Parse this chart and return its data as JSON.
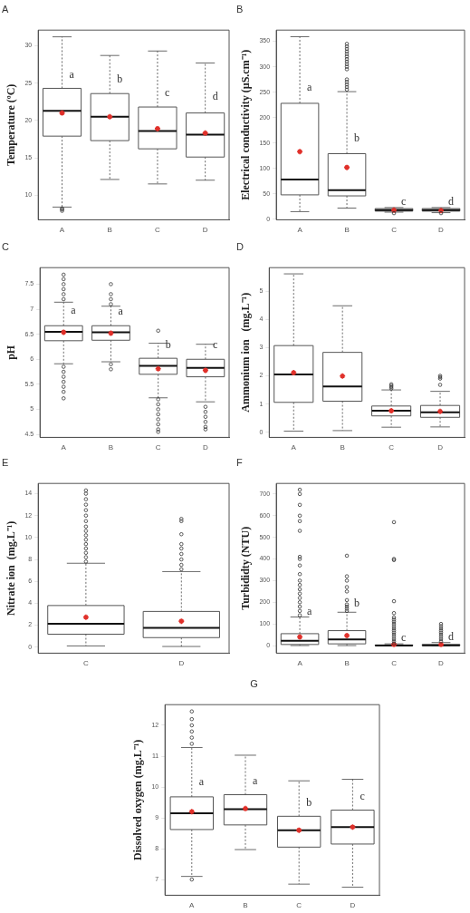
{
  "chart_data": [
    {
      "type": "box",
      "title": "A",
      "ylabel": "Temperature (ºC)",
      "categories": [
        "A",
        "B",
        "C",
        "D"
      ],
      "ylim": [
        6.7,
        32.1
      ],
      "yticks": [
        10,
        15,
        20,
        25,
        30
      ],
      "grid": false,
      "legend": false,
      "boxes": [
        {
          "low": 8.4,
          "q1": 17.9,
          "median": 21.3,
          "q3": 24.3,
          "high": 31.2,
          "mean": 21.0,
          "outliers": [
            7.9,
            8.1,
            8.2
          ]
        },
        {
          "low": 12.1,
          "q1": 17.3,
          "median": 20.5,
          "q3": 23.6,
          "high": 28.7,
          "mean": 20.5
        },
        {
          "low": 11.5,
          "q1": 16.2,
          "median": 18.6,
          "q3": 21.8,
          "high": 29.3,
          "mean": 18.9
        },
        {
          "low": 12.0,
          "q1": 15.1,
          "median": 18.1,
          "q3": 21.0,
          "high": 27.7,
          "mean": 18.3
        }
      ],
      "annotations": [
        {
          "text": "a",
          "x": "A",
          "y": 25.3
        },
        {
          "text": "b",
          "x": "B",
          "y": 24.7
        },
        {
          "text": "c",
          "x": "C",
          "y": 22.9
        },
        {
          "text": "d",
          "x": "D",
          "y": 22.4
        }
      ]
    },
    {
      "type": "box",
      "title": "B",
      "ylabel": "Electrical conductivity (µS.cm⁻¹)",
      "categories": [
        "A",
        "B",
        "C",
        "D"
      ],
      "ylim": [
        -1,
        372
      ],
      "yticks": [
        0,
        50,
        100,
        150,
        200,
        250,
        300,
        350
      ],
      "grid": false,
      "legend": false,
      "boxes": [
        {
          "low": 15,
          "q1": 48,
          "median": 78,
          "q3": 228,
          "high": 359,
          "mean": 133
        },
        {
          "low": 22,
          "q1": 46,
          "median": 57,
          "q3": 129,
          "high": 251,
          "mean": 102,
          "outliers": [
            255,
            260,
            265,
            270,
            275,
            295,
            300,
            305,
            310,
            315,
            320,
            325,
            330,
            335,
            340,
            345
          ]
        },
        {
          "low": 14,
          "q1": 16,
          "median": 18,
          "q3": 21,
          "high": 23,
          "mean": 18,
          "outliers": [
            12
          ]
        },
        {
          "low": 13,
          "q1": 16,
          "median": 18,
          "q3": 21,
          "high": 23,
          "mean": 17,
          "outliers": [
            12
          ]
        }
      ],
      "annotations": [
        {
          "text": "a",
          "x": "A",
          "y": 247
        },
        {
          "text": "b",
          "x": "B",
          "y": 148
        },
        {
          "text": "c",
          "x": "C",
          "y": 23
        },
        {
          "text": "d",
          "x": "D",
          "y": 23
        }
      ]
    },
    {
      "type": "box",
      "title": "C",
      "ylabel": "pH",
      "categories": [
        "A",
        "B",
        "C",
        "D"
      ],
      "ylim": [
        4.44,
        7.83
      ],
      "yticks": [
        4.5,
        5.0,
        5.5,
        6.0,
        6.5,
        7.0,
        7.5
      ],
      "grid": false,
      "legend": false,
      "boxes": [
        {
          "low": 5.91,
          "q1": 6.37,
          "median": 6.55,
          "q3": 6.67,
          "high": 7.14,
          "mean": 6.54,
          "outliers": [
            7.2,
            7.3,
            7.4,
            7.5,
            7.6,
            7.69,
            5.85,
            5.75,
            5.65,
            5.55,
            5.45,
            5.35,
            5.22
          ]
        },
        {
          "low": 5.95,
          "q1": 6.38,
          "median": 6.54,
          "q3": 6.67,
          "high": 7.06,
          "mean": 6.52,
          "outliers": [
            7.1,
            7.2,
            7.3,
            7.5,
            5.9,
            5.8
          ]
        },
        {
          "low": 5.23,
          "q1": 5.7,
          "median": 5.87,
          "q3": 6.02,
          "high": 6.32,
          "mean": 5.81,
          "outliers": [
            6.57,
            5.2,
            5.1,
            5.0,
            4.9,
            4.8,
            4.7,
            4.6,
            4.55
          ]
        },
        {
          "low": 5.15,
          "q1": 5.65,
          "median": 5.83,
          "q3": 6.0,
          "high": 6.3,
          "mean": 5.78,
          "outliers": [
            5.05,
            4.95,
            4.85,
            4.75,
            4.65,
            4.6
          ]
        }
      ],
      "annotations": [
        {
          "text": "a",
          "x": "A",
          "y": 6.85
        },
        {
          "text": "a",
          "x": "B",
          "y": 6.84
        },
        {
          "text": "b",
          "x": "C",
          "y": 6.17
        },
        {
          "text": "c",
          "x": "D",
          "y": 6.17
        }
      ]
    },
    {
      "type": "box",
      "title": "D",
      "ylabel": "Ammonium ion   (mg.L⁻¹)",
      "categories": [
        "A",
        "B",
        "C",
        "D"
      ],
      "ylim": [
        -0.18,
        5.83
      ],
      "yticks": [
        0,
        1,
        2,
        3,
        4,
        5
      ],
      "grid": false,
      "legend": false,
      "boxes": [
        {
          "low": 0.04,
          "q1": 1.06,
          "median": 2.05,
          "q3": 3.07,
          "high": 5.61,
          "mean": 2.11
        },
        {
          "low": 0.06,
          "q1": 1.1,
          "median": 1.62,
          "q3": 2.83,
          "high": 4.48,
          "mean": 1.99
        },
        {
          "low": 0.18,
          "q1": 0.58,
          "median": 0.76,
          "q3": 0.93,
          "high": 1.5,
          "mean": 0.76,
          "outliers": [
            1.55,
            1.6,
            1.65,
            1.7
          ]
        },
        {
          "low": 0.19,
          "q1": 0.53,
          "median": 0.71,
          "q3": 0.95,
          "high": 1.45,
          "mean": 0.74,
          "outliers": [
            1.68,
            1.9,
            1.95,
            2.0
          ]
        }
      ]
    },
    {
      "type": "box",
      "title": "E",
      "ylabel": "Nitrate ion  (mg.L⁻¹)",
      "categories": [
        "C",
        "D"
      ],
      "ylim": [
        -0.56,
        14.94
      ],
      "yticks": [
        0,
        2,
        4,
        6,
        8,
        10,
        12,
        14
      ],
      "grid": false,
      "legend": false,
      "boxes": [
        {
          "low": 0.1,
          "q1": 1.17,
          "median": 2.13,
          "q3": 3.79,
          "high": 7.65,
          "mean": 2.72,
          "outliers": [
            7.8,
            8.2,
            8.6,
            9.0,
            9.4,
            9.8,
            10.2,
            10.6,
            11.0,
            11.5,
            12.0,
            12.5,
            13.0,
            13.5,
            14.0,
            14.3
          ]
        },
        {
          "low": 0.05,
          "q1": 0.86,
          "median": 1.75,
          "q3": 3.25,
          "high": 6.89,
          "mean": 2.36,
          "outliers": [
            7.1,
            7.5,
            8.0,
            8.5,
            9.0,
            9.4,
            10.3,
            11.5,
            11.7
          ]
        }
      ]
    },
    {
      "type": "box",
      "title": "F",
      "ylabel": "Turbididty (NTU)",
      "categories": [
        "A",
        "B",
        "C",
        "D"
      ],
      "ylim": [
        -35,
        749
      ],
      "yticks": [
        0,
        100,
        200,
        300,
        400,
        500,
        600,
        700
      ],
      "grid": false,
      "legend": false,
      "boxes": [
        {
          "low": 0,
          "q1": 5,
          "median": 22,
          "q3": 55,
          "high": 132,
          "mean": 40,
          "outliers": [
            140,
            160,
            180,
            200,
            220,
            240,
            260,
            280,
            300,
            330,
            370,
            400,
            410,
            530,
            575,
            600,
            650,
            700,
            720
          ]
        },
        {
          "low": 0,
          "q1": 8,
          "median": 28,
          "q3": 69,
          "high": 154,
          "mean": 46,
          "outliers": [
            160,
            170,
            180,
            190,
            210,
            250,
            270,
            300,
            320,
            415
          ]
        },
        {
          "low": 0,
          "q1": 0,
          "median": 0.5,
          "q3": 3,
          "high": 8,
          "mean": 5,
          "outliers": [
            10,
            20,
            30,
            40,
            50,
            60,
            70,
            80,
            90,
            100,
            110,
            120,
            130,
            150,
            205,
            395,
            400,
            570
          ]
        },
        {
          "low": 0,
          "q1": 0,
          "median": 1,
          "q3": 5,
          "high": 14,
          "mean": 5,
          "outliers": [
            20,
            30,
            40,
            50,
            60,
            70,
            80,
            90,
            100
          ]
        }
      ],
      "annotations": [
        {
          "text": "a",
          "x": "A",
          "y": 132
        },
        {
          "text": "b",
          "x": "B",
          "y": 170
        },
        {
          "text": "c",
          "x": "C",
          "y": 8
        },
        {
          "text": "d",
          "x": "D",
          "y": 14
        }
      ]
    },
    {
      "type": "box",
      "title": "G",
      "ylabel": "Dissolved oxygen (mg.L⁻¹)",
      "categories": [
        "A",
        "B",
        "C",
        "D"
      ],
      "ylim": [
        6.49,
        12.67
      ],
      "yticks": [
        7,
        8,
        9,
        10,
        11,
        12
      ],
      "grid": false,
      "legend": false,
      "boxes": [
        {
          "low": 7.1,
          "q1": 8.62,
          "median": 9.15,
          "q3": 9.68,
          "high": 11.28,
          "mean": 9.2,
          "outliers": [
            11.4,
            11.6,
            11.8,
            12.0,
            12.2,
            12.45,
            7.0
          ]
        },
        {
          "low": 7.97,
          "q1": 8.77,
          "median": 9.28,
          "q3": 9.75,
          "high": 11.03,
          "mean": 9.3
        },
        {
          "low": 6.85,
          "q1": 8.05,
          "median": 8.6,
          "q3": 9.05,
          "high": 10.2,
          "mean": 8.6
        },
        {
          "low": 6.75,
          "q1": 8.15,
          "median": 8.7,
          "q3": 9.25,
          "high": 10.25,
          "mean": 8.7
        }
      ],
      "annotations": [
        {
          "text": "a",
          "x": "A",
          "y": 9.99
        },
        {
          "text": "a",
          "x": "B",
          "y": 10.0
        },
        {
          "text": "b",
          "x": "C",
          "y": 9.3
        },
        {
          "text": "c",
          "x": "D",
          "y": 9.5
        }
      ]
    }
  ]
}
